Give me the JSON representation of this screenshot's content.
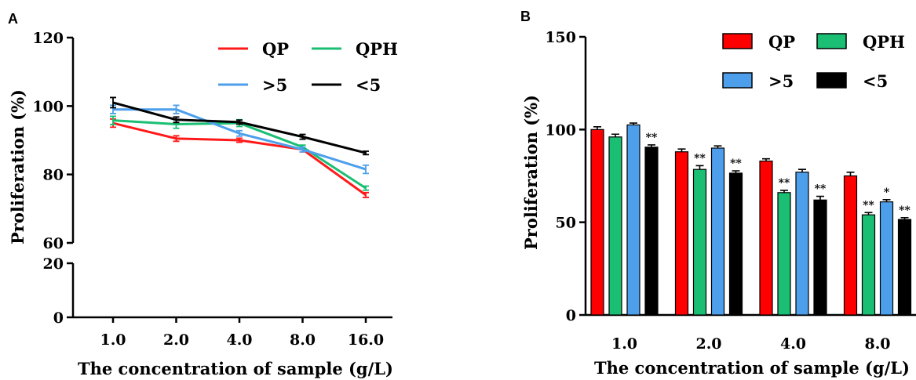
{
  "chart_data": [
    {
      "panel": "A",
      "type": "line",
      "categories": [
        "1.0",
        "2.0",
        "4.0",
        "8.0",
        "16.0"
      ],
      "xlabel": "The concentration of sample (g/L)",
      "ylabel": "Proliferation (%)",
      "y_broken_axis": true,
      "y_ticks": [
        "0",
        "20",
        "60",
        "80",
        "100",
        "120"
      ],
      "ylim_lower": [
        0,
        20
      ],
      "ylim_upper": [
        60,
        120
      ],
      "grid": false,
      "legend_placement": "top-right",
      "series": [
        {
          "name": "QP",
          "color": "#ff1a1a",
          "values": [
            95,
            90.5,
            90,
            87.3,
            74
          ],
          "errors": [
            1.2,
            0.8,
            0.6,
            0.7,
            0.7
          ]
        },
        {
          "name": "QPH",
          "color": "#1abf73",
          "values": [
            95.8,
            94.7,
            95,
            88,
            76
          ],
          "errors": [
            1.2,
            1.2,
            1.0,
            0.6,
            0.6
          ]
        },
        {
          "name": ">5",
          "color": "#4d9fec",
          "values": [
            99,
            99,
            92,
            87.3,
            81.5
          ],
          "errors": [
            1.2,
            1.2,
            0.8,
            0.7,
            1.2
          ]
        },
        {
          "name": "<5",
          "color": "#000000",
          "values": [
            101,
            96,
            95.3,
            91,
            86.3
          ],
          "errors": [
            1.5,
            0.8,
            0.6,
            0.7,
            0.5
          ]
        }
      ]
    },
    {
      "panel": "B",
      "type": "bar",
      "categories": [
        "1.0",
        "2.0",
        "4.0",
        "8.0"
      ],
      "xlabel": "The concentration of sample (g/L)",
      "ylabel": "Proliferation (%)",
      "ylim": [
        0,
        150
      ],
      "y_ticks": [
        "0",
        "50",
        "100",
        "150"
      ],
      "grid": false,
      "legend_placement": "top-right",
      "series": [
        {
          "name": "QP",
          "color": "#ff0000",
          "values": [
            100,
            88,
            83,
            75
          ],
          "errors": [
            1.5,
            1.5,
            1.2,
            2.0
          ],
          "sig": [
            "",
            "",
            "",
            ""
          ]
        },
        {
          "name": "QPH",
          "color": "#1abf73",
          "values": [
            96,
            78.5,
            66,
            54
          ],
          "errors": [
            1.5,
            2.0,
            1.2,
            1.2
          ],
          "sig": [
            "",
            "**",
            "**",
            "**"
          ]
        },
        {
          "name": ">5",
          "color": "#4d9fec",
          "values": [
            102.5,
            90,
            77,
            61
          ],
          "errors": [
            1.0,
            1.2,
            1.5,
            1.2
          ],
          "sig": [
            "",
            "",
            "",
            "*"
          ]
        },
        {
          "name": "<5",
          "color": "#000000",
          "values": [
            90.5,
            76.5,
            62,
            51.5
          ],
          "errors": [
            1.2,
            1.2,
            2.0,
            1.0
          ],
          "sig": [
            "**",
            "**",
            "**",
            "**"
          ]
        }
      ]
    }
  ],
  "panel_labels": [
    "A",
    "B"
  ]
}
